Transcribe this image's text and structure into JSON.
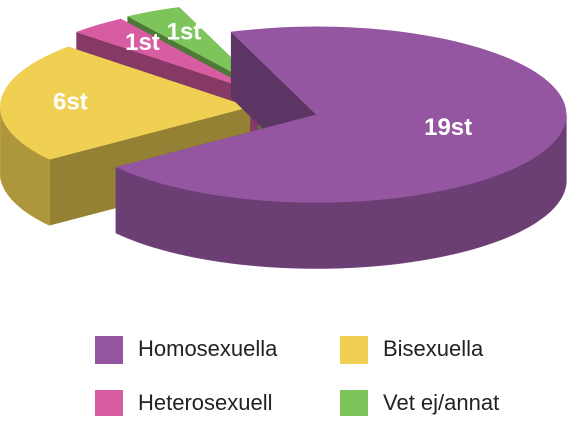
{
  "chart_data": {
    "type": "pie3d",
    "categories": [
      "Homosexuella",
      "Bisexuella",
      "Heterosexuell",
      "Vet ej/annat"
    ],
    "values": [
      19,
      6,
      1,
      1
    ],
    "value_labels": [
      "19st",
      "6st",
      "1st",
      "1st"
    ],
    "colors": [
      "#9456a1",
      "#f0d052",
      "#d85ca2",
      "#7dc45b"
    ],
    "legend": "bottom"
  }
}
